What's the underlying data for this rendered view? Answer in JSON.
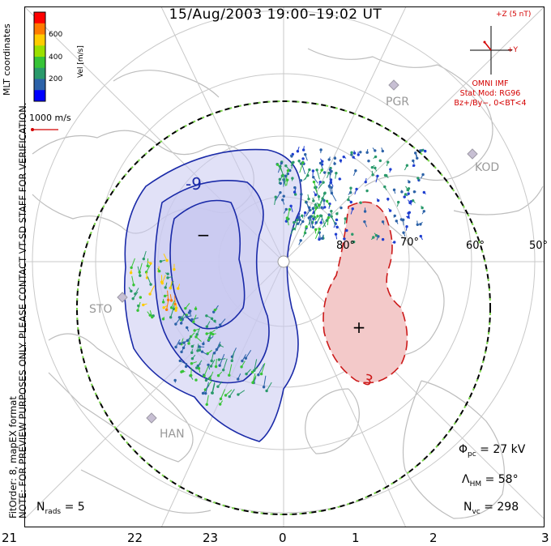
{
  "title": "15/Aug/2003  19:00–19:02  UT",
  "side_note_line1": "NOTE: FOR PREVIEW PURPOSES ONLY. PLEASE CONTACT VT-SD STAFF FOR VERIFICATION.",
  "side_note_line2": "FitOrder: 8,  mapEX format",
  "coord_note": "MLT coordinates",
  "colorbar": {
    "label": "Vel [m/s]",
    "ticks": [
      "600",
      "400",
      "200"
    ],
    "colors": [
      "#ff0000",
      "#ff7a00",
      "#ffcc00",
      "#9be000",
      "#37c437",
      "#2a9a6b",
      "#2c62a8",
      "#0000ff"
    ]
  },
  "reference_vector": "1000 m/s",
  "imf": {
    "z_label": "+Z (5 nT)",
    "y_label": "+Y",
    "model_lines": [
      "OMNI IMF",
      "Stat Mod: RG96",
      "Bz+/By−, 0<BT<4"
    ]
  },
  "stats": {
    "phi_pc_label": "Φ",
    "phi_pc_sub": "pc",
    "phi_pc_value": "=  27  kV",
    "lambda_hm_label": "Λ",
    "lambda_hm_sub": "HM",
    "lambda_hm_value": "=  58°",
    "n_vc_label": "N",
    "n_vc_sub": "vc",
    "n_vc_value": "=  298",
    "n_rads_label": "N",
    "n_rads_sub": "rads",
    "n_rads_value": "=  5"
  },
  "mlt_axis": [
    "21",
    "22",
    "23",
    "0",
    "1",
    "2",
    "3"
  ],
  "latitude_labels": [
    "80°",
    "70°",
    "60°",
    "50°"
  ],
  "stations": [
    "PGR",
    "KOD",
    "STO",
    "HAN"
  ],
  "potential": {
    "min_contour_label": "-9",
    "max_contour_label": "3",
    "min_marker": "−",
    "max_marker": "+",
    "negative_color": "#c8c8f0",
    "positive_color": "#f3c9c9",
    "negative_line": "#1a2aa8",
    "positive_line": "#cc1a1a"
  }
}
